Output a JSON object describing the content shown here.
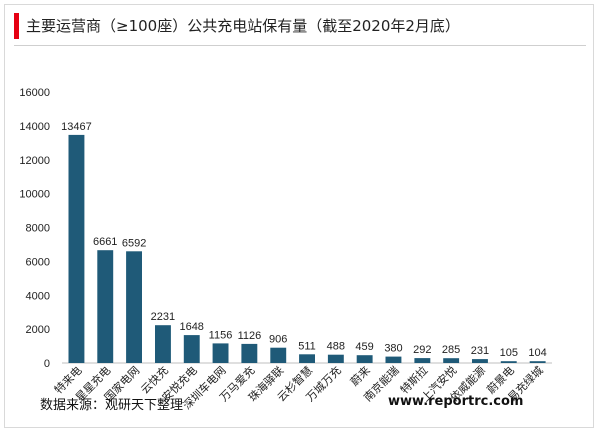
{
  "header": {
    "title": "主要运营商（≥100座）公共充电站保有量（截至2020年2月底）"
  },
  "footer": {
    "source": "数据来源：观研天下整理",
    "website": "www.reportrc.com"
  },
  "colors": {
    "bar": "#1f5a78",
    "accent": "#e60012",
    "axis": "#bfbfbf"
  },
  "chart_data": {
    "type": "bar",
    "title": "",
    "xlabel": "",
    "ylabel": "",
    "ylim": [
      0,
      16000
    ],
    "yticks": [
      0,
      2000,
      4000,
      6000,
      8000,
      10000,
      12000,
      14000,
      16000
    ],
    "grid": false,
    "legend": "none",
    "categories": [
      "特来电",
      "星星充电",
      "国家电网",
      "云快充",
      "安悦充电",
      "深圳车电网",
      "万马爱充",
      "珠海驿联",
      "云杉智慧",
      "万城万充",
      "蔚来",
      "南京能瑞",
      "特斯拉",
      "上汽安悦",
      "依威能源",
      "蔚景电",
      "易充绿城"
    ],
    "values": [
      13467,
      6661,
      6592,
      2231,
      1648,
      1156,
      1126,
      906,
      511,
      488,
      459,
      380,
      292,
      285,
      231,
      105,
      104
    ]
  }
}
